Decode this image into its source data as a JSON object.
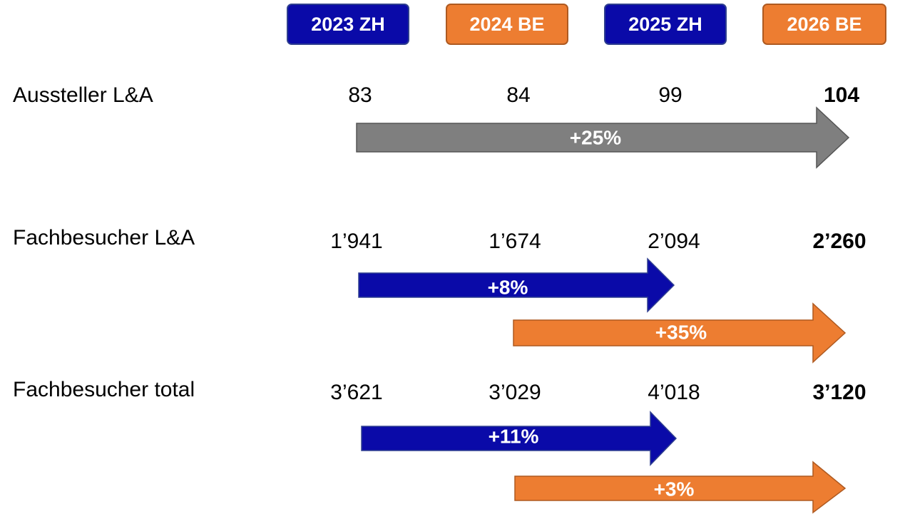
{
  "header": {
    "columns": [
      "2023 ZH",
      "2024 BE",
      "2025 ZH",
      "2026 BE"
    ]
  },
  "rows": [
    {
      "label": "Aussteller L&A",
      "values": [
        "83",
        "84",
        "99",
        "104"
      ],
      "arrows": [
        "+25%"
      ]
    },
    {
      "label": "Fachbesucher L&A",
      "values": [
        "1’941",
        "1’674",
        "2’094",
        "2’260"
      ],
      "arrows": [
        "+8%",
        "+35%"
      ]
    },
    {
      "label": "Fachbesucher total",
      "values": [
        "3’621",
        "3’029",
        "4’018",
        "3’120"
      ],
      "arrows": [
        "+11%",
        "+3%"
      ]
    }
  ]
}
